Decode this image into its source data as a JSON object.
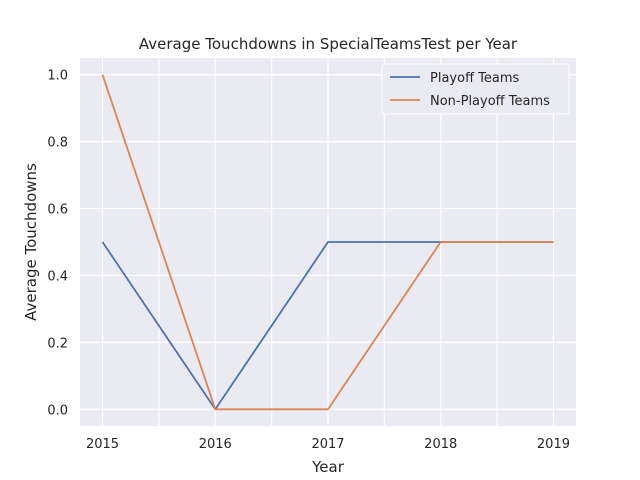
{
  "chart_data": {
    "type": "line",
    "title": "Average Touchdowns in SpecialTeamsTest per Year",
    "xlabel": "Year",
    "ylabel": "Average Touchdowns",
    "x": [
      2015,
      2016,
      2017,
      2018,
      2019
    ],
    "xticks": [
      "2015",
      "2016",
      "2017",
      "2018",
      "2019"
    ],
    "yticks": [
      "0.0",
      "0.2",
      "0.4",
      "0.6",
      "0.8",
      "1.0"
    ],
    "xlim": [
      2014.8,
      2019.2
    ],
    "ylim": [
      -0.05,
      1.05
    ],
    "grid": true,
    "legend_position": "top-right",
    "series": [
      {
        "name": "Playoff Teams",
        "color": "#4c72b0",
        "values": [
          0.5,
          0.0,
          0.5,
          0.5,
          0.5
        ]
      },
      {
        "name": "Non-Playoff Teams",
        "color": "#dd8452",
        "values": [
          1.0,
          0.0,
          0.0,
          0.5,
          0.5
        ]
      }
    ]
  }
}
